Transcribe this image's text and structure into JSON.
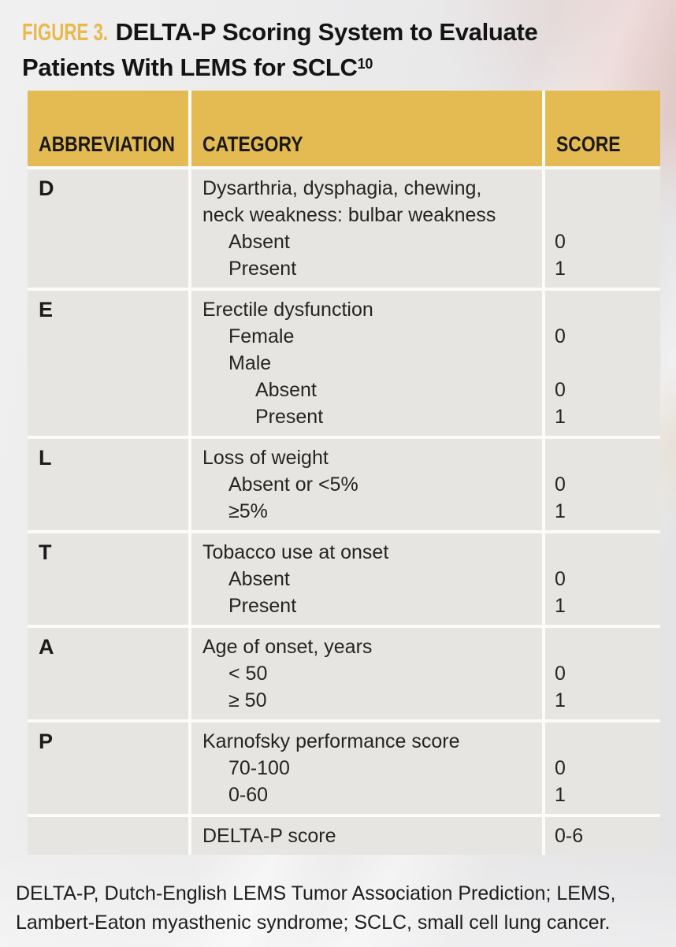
{
  "figure": {
    "label": "FIGURE 3.",
    "title_line1": "DELTA-P Scoring System to Evaluate",
    "title_line2": "Patients With LEMS for SCLC",
    "title_superscript": "10"
  },
  "colors": {
    "header_yellow": "#E4BA52",
    "figure_label_gold": "#EAB94C",
    "cell_gray": "#E6E5E2",
    "text_black": "#1A1A1A"
  },
  "table": {
    "columns": [
      "ABBREVIATION",
      "CATEGORY",
      "SCORE"
    ],
    "rows": [
      {
        "abbreviation": "D",
        "lines": [
          {
            "text": "Dysarthria, dysphagia, chewing,",
            "indent": 0,
            "score": ""
          },
          {
            "text": "neck weakness: bulbar weakness",
            "indent": 0,
            "score": ""
          },
          {
            "text": "Absent",
            "indent": 1,
            "score": "0"
          },
          {
            "text": "Present",
            "indent": 1,
            "score": "1"
          }
        ]
      },
      {
        "abbreviation": "E",
        "lines": [
          {
            "text": "Erectile dysfunction",
            "indent": 0,
            "score": ""
          },
          {
            "text": "Female",
            "indent": 1,
            "score": "0"
          },
          {
            "text": "Male",
            "indent": 1,
            "score": ""
          },
          {
            "text": "Absent",
            "indent": 2,
            "score": "0"
          },
          {
            "text": "Present",
            "indent": 2,
            "score": "1"
          }
        ]
      },
      {
        "abbreviation": "L",
        "lines": [
          {
            "text": "Loss of weight",
            "indent": 0,
            "score": ""
          },
          {
            "text": "Absent or <5%",
            "indent": 1,
            "score": "0"
          },
          {
            "text": "≥5%",
            "indent": 1,
            "score": "1"
          }
        ]
      },
      {
        "abbreviation": "T",
        "lines": [
          {
            "text": "Tobacco use at onset",
            "indent": 0,
            "score": ""
          },
          {
            "text": "Absent",
            "indent": 1,
            "score": "0"
          },
          {
            "text": "Present",
            "indent": 1,
            "score": "1"
          }
        ]
      },
      {
        "abbreviation": "A",
        "lines": [
          {
            "text": "Age of onset, years",
            "indent": 0,
            "score": ""
          },
          {
            "text": "< 50",
            "indent": 1,
            "score": "0"
          },
          {
            "text": "≥ 50",
            "indent": 1,
            "score": "1"
          }
        ]
      },
      {
        "abbreviation": "P",
        "lines": [
          {
            "text": "Karnofsky performance score",
            "indent": 0,
            "score": ""
          },
          {
            "text": "70-100",
            "indent": 1,
            "score": "0"
          },
          {
            "text": "0-60",
            "indent": 1,
            "score": "1"
          }
        ]
      },
      {
        "abbreviation": "",
        "lines": [
          {
            "text": "DELTA-P score",
            "indent": 0,
            "score": "0-6"
          }
        ]
      }
    ]
  },
  "footnote": {
    "lines": [
      "DELTA-P, Dutch-English LEMS Tumor Association Prediction; LEMS,",
      "Lambert-Eaton myasthenic syndrome; SCLC, small cell lung cancer."
    ]
  }
}
